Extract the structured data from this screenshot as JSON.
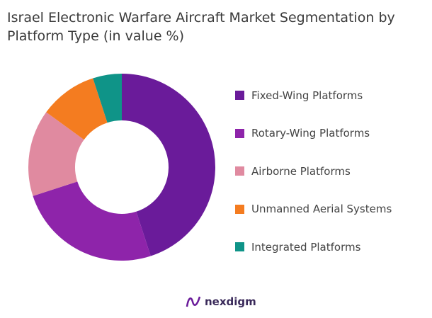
{
  "chart_data": {
    "type": "donut",
    "title": "Israel Electronic Warfare Aircraft Market Segmentation by Platform Type (in value %)",
    "categories": [
      "Fixed-Wing Platforms",
      "Rotary-Wing Platforms",
      "Airborne Platforms",
      "Unmanned Aerial Systems",
      "Integrated Platforms"
    ],
    "values": [
      45,
      25,
      15,
      10,
      5
    ],
    "colors": [
      "#6a1b9a",
      "#8e24aa",
      "#e08aa0",
      "#f47c20",
      "#0f9488"
    ],
    "legend_position": "right"
  },
  "logo": {
    "text": "nexdigm"
  }
}
